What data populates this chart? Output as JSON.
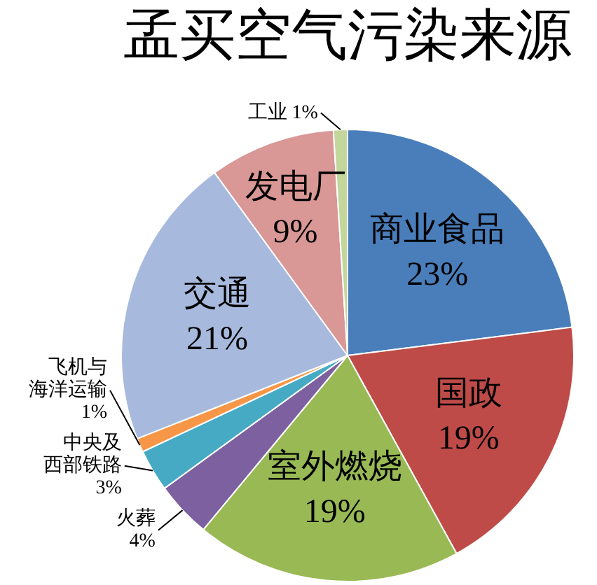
{
  "chart_data": {
    "type": "pie",
    "title": "孟买空气污染来源",
    "categories": [
      "商业食品",
      "国政",
      "室外燃烧",
      "火葬",
      "中央及西部铁路",
      "飞机与海洋运输",
      "交通",
      "发电厂",
      "工业"
    ],
    "values": [
      23,
      19,
      19,
      4,
      3,
      1,
      21,
      9,
      1
    ],
    "colors": [
      "#4a7ebb",
      "#be4b48",
      "#98b954",
      "#7d60a0",
      "#46aac5",
      "#f79646",
      "#a7b9dd",
      "#d99795",
      "#c3d69b"
    ],
    "value_labels": [
      "23%",
      "19%",
      "19%",
      "4%",
      "3%",
      "1%",
      "21%",
      "9%",
      "1%"
    ]
  }
}
